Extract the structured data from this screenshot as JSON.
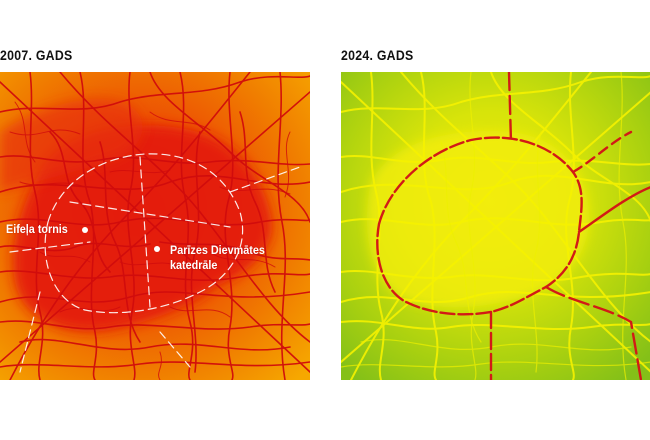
{
  "panels": {
    "left": {
      "title": "2007. GADS",
      "colors": {
        "background_low": "#f4a300",
        "background_mid": "#ee5a00",
        "background_high": "#e8230a",
        "roads": "#d40e0e",
        "highlights": "#ffffff"
      },
      "landmarks": [
        {
          "name": "Eifeļa tornis",
          "lines": [
            "Eifeļa tornis"
          ]
        },
        {
          "name": "Parīzes Dievmātes katedrāle",
          "lines": [
            "Parīzes Dievmātes",
            "katedrāle"
          ]
        }
      ]
    },
    "right": {
      "title": "2024. GADS",
      "colors": {
        "background_low": "#86c214",
        "background_mid": "#c8dc0a",
        "background_high": "#f0ea08",
        "roads": "#f4f000",
        "hot_roads": "#d01818"
      }
    }
  }
}
